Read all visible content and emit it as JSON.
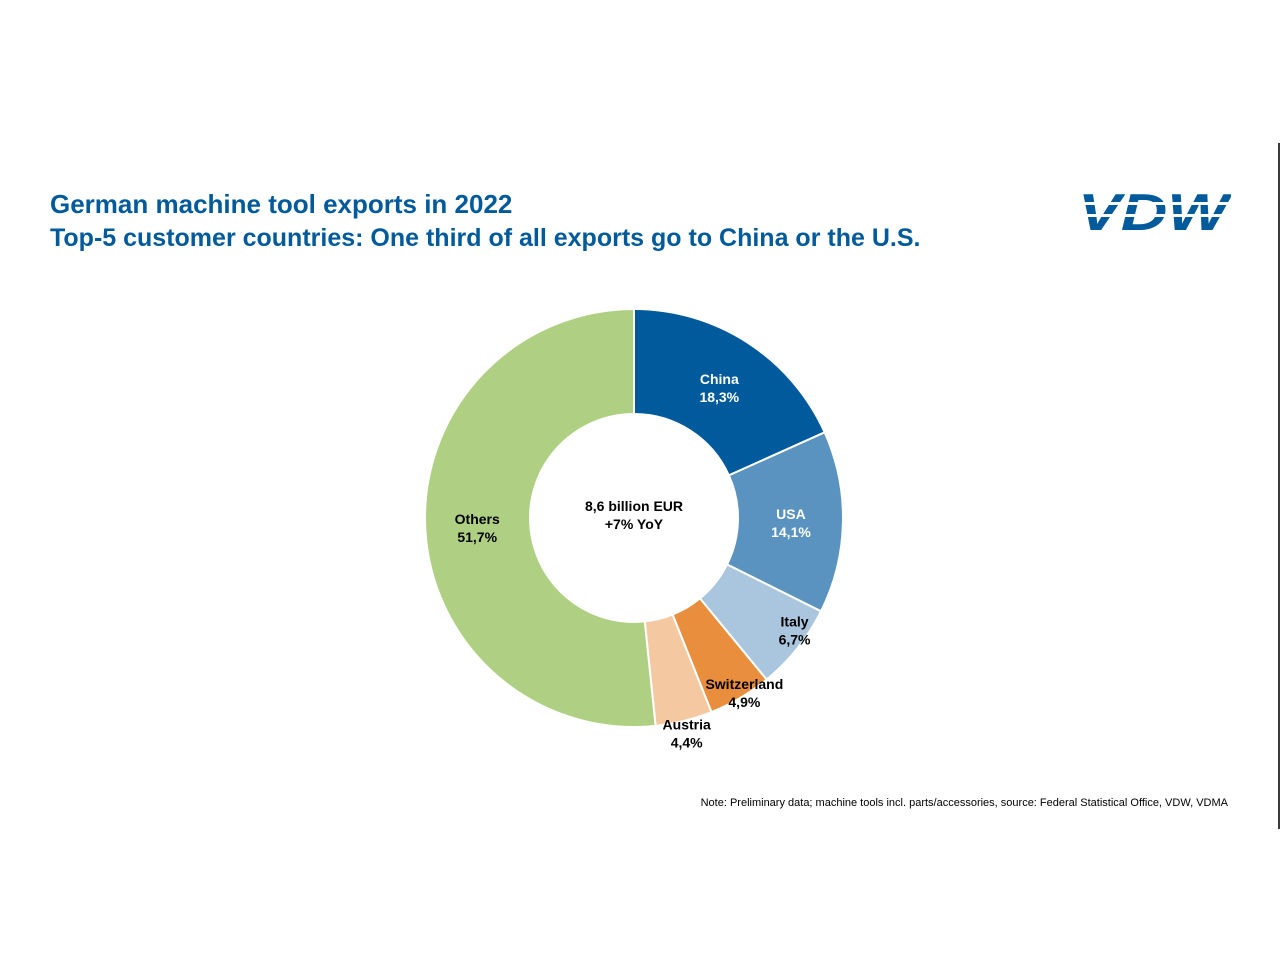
{
  "header": {
    "title": "German machine tool exports in 2022",
    "subtitle": "Top-5 customer countries: One third of all exports go to China or the U.S."
  },
  "logo": {
    "text": "VDW",
    "color": "#005a9c"
  },
  "chart_data": {
    "type": "pie",
    "donut": true,
    "title": "German machine tool exports in 2022",
    "subtitle": "Top-5 customer countries: One third of all exports go to China or the U.S.",
    "center_label": [
      "8,6 billion EUR",
      "+7% YoY"
    ],
    "unit": "%",
    "slices": [
      {
        "name": "China",
        "value": 18.3,
        "display": "18,3%",
        "color": "#005a9c",
        "label_color": "#ffffff"
      },
      {
        "name": "USA",
        "value": 14.1,
        "display": "14,1%",
        "color": "#5b93c0",
        "label_color": "#ffffff"
      },
      {
        "name": "Italy",
        "value": 6.7,
        "display": "6,7%",
        "color": "#aac6de",
        "label_color": "#000000"
      },
      {
        "name": "Switzerland",
        "value": 4.9,
        "display": "4,9%",
        "color": "#e98e3d",
        "label_color": "#000000"
      },
      {
        "name": "Austria",
        "value": 4.4,
        "display": "4,4%",
        "color": "#f4c9a2",
        "label_color": "#000000"
      },
      {
        "name": "Others",
        "value": 51.7,
        "display": "51,7%",
        "color": "#afd083",
        "label_color": "#000000"
      }
    ]
  },
  "footer": {
    "note": "Note: Preliminary data; machine tools incl. parts/accessories, source: Federal Statistical Office, VDW, VDMA"
  }
}
